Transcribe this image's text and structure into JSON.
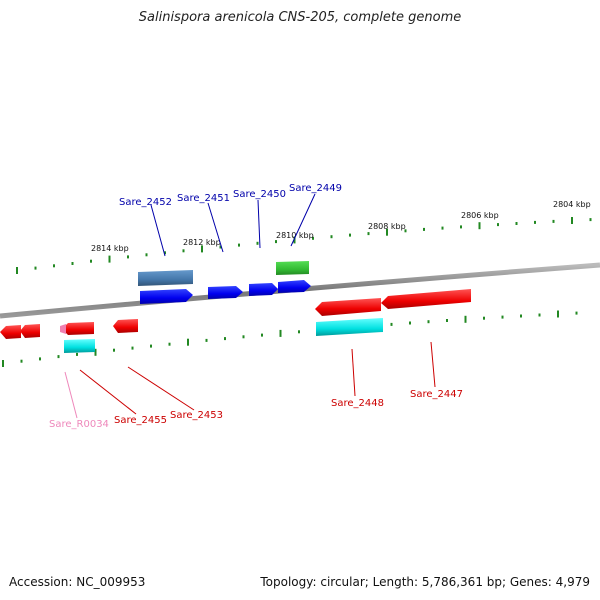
{
  "title": "Salinispora arenicola CNS-205, complete genome",
  "footer": {
    "accession": "Accession: NC_009953",
    "summary": "Topology: circular; Length: 5,786,361 bp; Genes: 4,979"
  },
  "tick_labels": [
    "2804 kbp",
    "2806 kbp",
    "2808 kbp",
    "2810 kbp",
    "2812 kbp",
    "2814 kbp"
  ],
  "genes": [
    {
      "id": "Sare_2452",
      "color": "#0000aa"
    },
    {
      "id": "Sare_2451",
      "color": "#0000aa"
    },
    {
      "id": "Sare_2450",
      "color": "#0000aa"
    },
    {
      "id": "Sare_2449",
      "color": "#0000aa"
    },
    {
      "id": "Sare_2448",
      "color": "#cc0000"
    },
    {
      "id": "Sare_2447",
      "color": "#cc0000"
    },
    {
      "id": "Sare_2455",
      "color": "#cc0000"
    },
    {
      "id": "Sare_2453",
      "color": "#cc0000"
    },
    {
      "id": "Sare_R0034",
      "color": "#ee88bb"
    }
  ],
  "colors": {
    "backbone": "#888888",
    "forward_gene": "#0000ee",
    "reverse_gene": "#ee0000",
    "cds_feature": "#00dddd",
    "rrna_feature": "#33bb33",
    "steel_feature": "#4477aa",
    "tick": "#228822"
  }
}
